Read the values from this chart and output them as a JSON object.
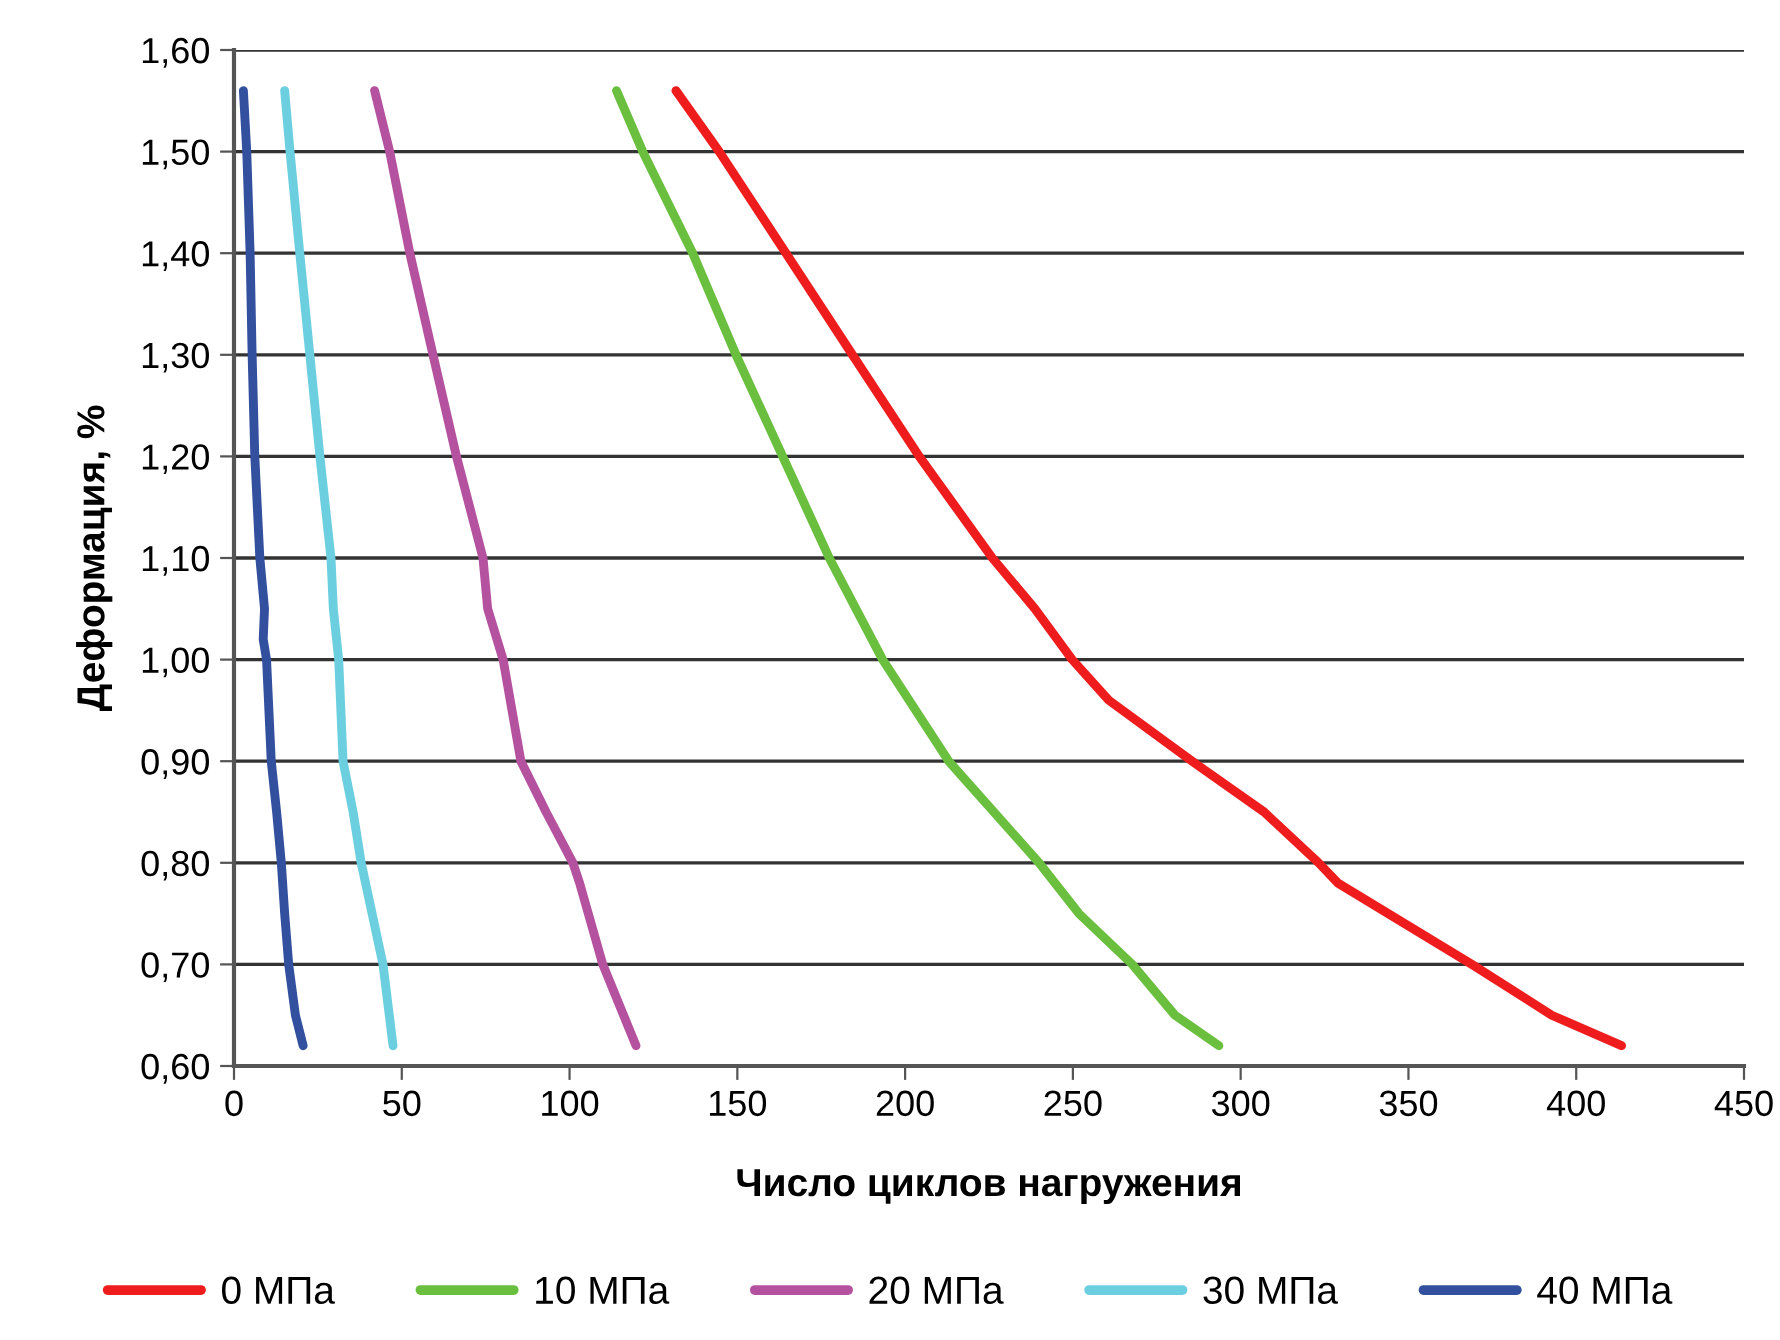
{
  "chart_data": {
    "type": "line",
    "xlabel": "Число циклов нагружения",
    "ylabel": "Деформация, %",
    "xlim": [
      0,
      450
    ],
    "xticks": [
      0,
      50,
      100,
      150,
      200,
      250,
      300,
      350,
      400,
      450
    ],
    "ylim": [
      0.6,
      1.6
    ],
    "yticks": [
      {
        "value": 0.6,
        "label": "0,60"
      },
      {
        "value": 0.7,
        "label": "0,70"
      },
      {
        "value": 0.8,
        "label": "0,80"
      },
      {
        "value": 0.9,
        "label": "0,90"
      },
      {
        "value": 1.0,
        "label": "1,00"
      },
      {
        "value": 1.1,
        "label": "1,10"
      },
      {
        "value": 1.2,
        "label": "1,20"
      },
      {
        "value": 1.3,
        "label": "1,30"
      },
      {
        "value": 1.4,
        "label": "1,40"
      },
      {
        "value": 1.5,
        "label": "1,50"
      },
      {
        "value": 1.6,
        "label": "1,60"
      }
    ],
    "grid": "y",
    "legend": "bottom",
    "marker": "none",
    "line_style": "solid",
    "series": [
      {
        "name": "0 МПа",
        "color": "#ee1c1c",
        "x": [
          131.7,
          144.6,
          164.5,
          184.3,
          204.2,
          226,
          238.7,
          249.8,
          260.7,
          285.5,
          307,
          323.2,
          329,
          368.9,
          392.7,
          413.5
        ],
        "values": [
          1.56,
          1.5,
          1.4,
          1.3,
          1.2,
          1.1,
          1.05,
          1.0,
          0.96,
          0.9,
          0.85,
          0.8,
          0.78,
          0.7,
          0.65,
          0.62
        ]
      },
      {
        "name": "10 МПа",
        "color": "#6abf3f",
        "x": [
          114,
          121.8,
          136.7,
          149.6,
          163.5,
          177.4,
          193.3,
          213,
          239.9,
          251.8,
          267.7,
          280.4,
          293.5
        ],
        "values": [
          1.56,
          1.5,
          1.4,
          1.3,
          1.2,
          1.1,
          1.0,
          0.9,
          0.8,
          0.75,
          0.7,
          0.65,
          0.62
        ]
      },
      {
        "name": "20 МПа",
        "color": "#b5529f",
        "x": [
          41.9,
          46.4,
          52.4,
          59.3,
          66.3,
          74.2,
          75.6,
          80.2,
          85.5,
          93,
          101,
          103,
          109.9,
          119.8
        ],
        "values": [
          1.56,
          1.5,
          1.4,
          1.3,
          1.2,
          1.1,
          1.05,
          1.0,
          0.9,
          0.85,
          0.8,
          0.78,
          0.7,
          0.62
        ]
      },
      {
        "name": "30 МПа",
        "color": "#6ccfdf",
        "x": [
          15.1,
          16.7,
          19.6,
          22.6,
          25.6,
          28.9,
          29.6,
          31.2,
          32.5,
          35.5,
          37.9,
          44.4,
          47.4
        ],
        "values": [
          1.56,
          1.5,
          1.4,
          1.3,
          1.2,
          1.1,
          1.05,
          1.0,
          0.9,
          0.85,
          0.8,
          0.7,
          0.62
        ]
      },
      {
        "name": "40 МПа",
        "color": "#33509f",
        "x": [
          2.8,
          3.8,
          4.8,
          5.4,
          6.2,
          7.7,
          9.1,
          8.7,
          9.7,
          11.1,
          12.7,
          14.1,
          15.1,
          16.3,
          18.3,
          20.6
        ],
        "values": [
          1.56,
          1.5,
          1.4,
          1.3,
          1.2,
          1.1,
          1.05,
          1.02,
          1.0,
          0.9,
          0.85,
          0.8,
          0.75,
          0.7,
          0.65,
          0.62
        ]
      }
    ]
  }
}
